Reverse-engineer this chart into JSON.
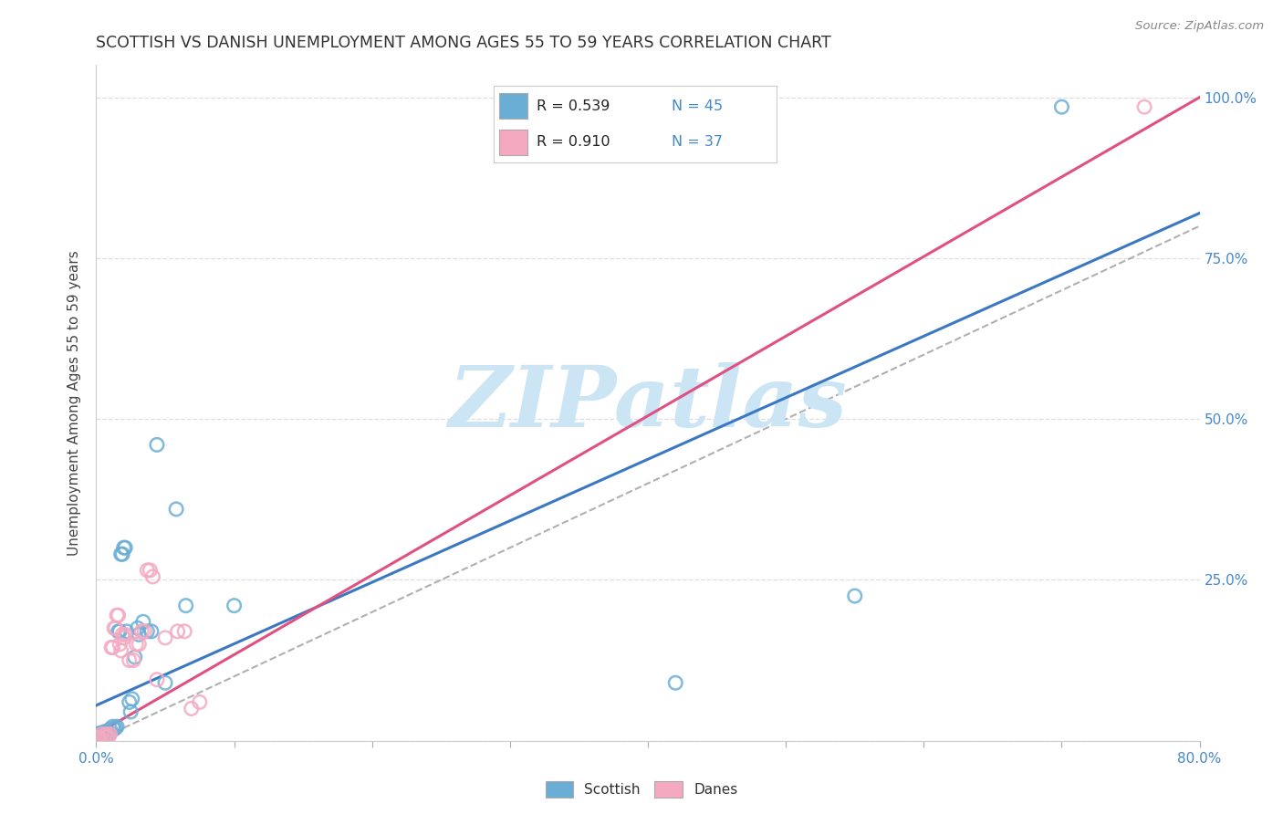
{
  "title": "SCOTTISH VS DANISH UNEMPLOYMENT AMONG AGES 55 TO 59 YEARS CORRELATION CHART",
  "source": "Source: ZipAtlas.com",
  "ylabel": "Unemployment Among Ages 55 to 59 years",
  "xlim": [
    0.0,
    0.8
  ],
  "ylim": [
    0.0,
    1.05
  ],
  "xticks": [
    0.0,
    0.1,
    0.2,
    0.3,
    0.4,
    0.5,
    0.6,
    0.7,
    0.8
  ],
  "yticks": [
    0.0,
    0.25,
    0.5,
    0.75,
    1.0
  ],
  "right_ytick_labels": [
    "",
    "25.0%",
    "50.0%",
    "75.0%",
    "100.0%"
  ],
  "xtick_labels_show": {
    "0": "0.0%",
    "8": "80.0%"
  },
  "scottish_color": "#6aaed6",
  "danes_color": "#f4a9c1",
  "trendline_scottish_color": "#3b78c3",
  "trendline_danes_color": "#e05080",
  "trendline_dashed_color": "#b0b0b0",
  "watermark": "ZIPatlas",
  "watermark_color": "#cce5f5",
  "scottish_points": [
    [
      0.001,
      0.008
    ],
    [
      0.002,
      0.01
    ],
    [
      0.003,
      0.008
    ],
    [
      0.003,
      0.012
    ],
    [
      0.004,
      0.01
    ],
    [
      0.005,
      0.008
    ],
    [
      0.005,
      0.012
    ],
    [
      0.006,
      0.01
    ],
    [
      0.006,
      0.014
    ],
    [
      0.007,
      0.012
    ],
    [
      0.008,
      0.014
    ],
    [
      0.008,
      0.01
    ],
    [
      0.009,
      0.012
    ],
    [
      0.01,
      0.018
    ],
    [
      0.01,
      0.012
    ],
    [
      0.012,
      0.022
    ],
    [
      0.013,
      0.018
    ],
    [
      0.014,
      0.02
    ],
    [
      0.015,
      0.022
    ],
    [
      0.016,
      0.17
    ],
    [
      0.017,
      0.17
    ],
    [
      0.018,
      0.29
    ],
    [
      0.019,
      0.29
    ],
    [
      0.02,
      0.3
    ],
    [
      0.021,
      0.3
    ],
    [
      0.022,
      0.17
    ],
    [
      0.024,
      0.06
    ],
    [
      0.025,
      0.045
    ],
    [
      0.026,
      0.065
    ],
    [
      0.028,
      0.13
    ],
    [
      0.03,
      0.175
    ],
    [
      0.031,
      0.165
    ],
    [
      0.034,
      0.185
    ],
    [
      0.037,
      0.17
    ],
    [
      0.04,
      0.17
    ],
    [
      0.044,
      0.46
    ],
    [
      0.05,
      0.09
    ],
    [
      0.058,
      0.36
    ],
    [
      0.065,
      0.21
    ],
    [
      0.1,
      0.21
    ],
    [
      0.42,
      0.09
    ],
    [
      0.55,
      0.225
    ],
    [
      0.7,
      0.985
    ]
  ],
  "danes_points": [
    [
      0.001,
      0.005
    ],
    [
      0.002,
      0.005
    ],
    [
      0.003,
      0.002
    ],
    [
      0.004,
      0.01
    ],
    [
      0.005,
      0.002
    ],
    [
      0.006,
      0.007
    ],
    [
      0.007,
      0.01
    ],
    [
      0.008,
      0.005
    ],
    [
      0.009,
      0.007
    ],
    [
      0.01,
      0.01
    ],
    [
      0.011,
      0.145
    ],
    [
      0.012,
      0.145
    ],
    [
      0.013,
      0.175
    ],
    [
      0.014,
      0.175
    ],
    [
      0.015,
      0.195
    ],
    [
      0.016,
      0.195
    ],
    [
      0.017,
      0.15
    ],
    [
      0.018,
      0.14
    ],
    [
      0.019,
      0.165
    ],
    [
      0.02,
      0.16
    ],
    [
      0.021,
      0.165
    ],
    [
      0.024,
      0.125
    ],
    [
      0.027,
      0.125
    ],
    [
      0.029,
      0.15
    ],
    [
      0.031,
      0.15
    ],
    [
      0.033,
      0.17
    ],
    [
      0.035,
      0.17
    ],
    [
      0.037,
      0.265
    ],
    [
      0.039,
      0.265
    ],
    [
      0.041,
      0.255
    ],
    [
      0.044,
      0.095
    ],
    [
      0.05,
      0.16
    ],
    [
      0.059,
      0.17
    ],
    [
      0.064,
      0.17
    ],
    [
      0.069,
      0.05
    ],
    [
      0.075,
      0.06
    ],
    [
      0.76,
      0.985
    ]
  ],
  "scottish_trendline": [
    [
      0.0,
      0.055
    ],
    [
      0.8,
      0.82
    ]
  ],
  "danes_trendline": [
    [
      0.0,
      0.01
    ],
    [
      0.8,
      1.0
    ]
  ],
  "identity_line": [
    [
      0.0,
      0.0
    ],
    [
      1.05,
      1.05
    ]
  ]
}
